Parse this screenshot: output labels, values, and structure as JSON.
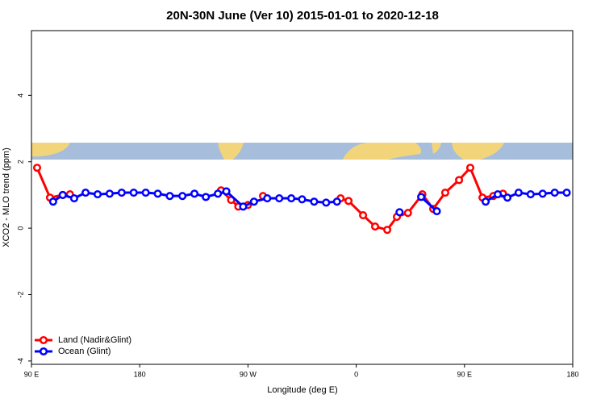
{
  "chart_data": {
    "type": "line",
    "title": "20N-30N June (Ver 10)   2015-01-01 to 2020-12-18",
    "x_label": "Longitude (deg E)",
    "y_label": "XCO2 - MLO trend (ppm)",
    "xlim": [
      90,
      540
    ],
    "ylim": [
      -4.1,
      5.95
    ],
    "xticks": [
      {
        "value": 90,
        "label": "90 E"
      },
      180,
      {
        "value": 270,
        "label": "90 W"
      },
      {
        "value": 360,
        "label": "0"
      },
      {
        "value": 450,
        "label": "90 E"
      },
      {
        "value": 540,
        "label": "180"
      }
    ],
    "yticks": [
      -4,
      -2,
      0,
      2,
      4
    ],
    "legend": "bottom-left",
    "series": [
      {
        "name": "Land (Nadir&Glint)",
        "color": "#ff0000",
        "x": [
          94.7,
          105.4,
          116,
          122,
          null,
          247.6,
          256,
          262,
          270,
          null,
          282.5,
          null,
          347,
          353.6,
          365.7,
          375.7,
          385.8,
          393.8,
          403,
          415,
          424,
          434,
          445.5,
          454.8,
          465,
          474,
          482
        ],
        "values": [
          1.82,
          0.92,
          1.0,
          1.02,
          null,
          1.14,
          0.85,
          0.65,
          0.7,
          null,
          0.97,
          null,
          0.9,
          0.82,
          0.39,
          0.05,
          -0.05,
          0.34,
          0.46,
          1.02,
          0.58,
          1.07,
          1.45,
          1.82,
          0.92,
          0.97,
          1.04
        ]
      },
      {
        "name": "Ocean (Glint)",
        "color": "#0000ff",
        "x": [
          108,
          116,
          125.5,
          135,
          145,
          155,
          165,
          175,
          185,
          195,
          205,
          215.5,
          225.5,
          235,
          245,
          252,
          266,
          275,
          286,
          296,
          306,
          315,
          325,
          335,
          344,
          null,
          396,
          null,
          414,
          427,
          null,
          467.6,
          477.7,
          485.7,
          495,
          505,
          515,
          525,
          535
        ],
        "values": [
          0.8,
          1.0,
          0.9,
          1.07,
          1.02,
          1.04,
          1.07,
          1.07,
          1.07,
          1.04,
          0.97,
          0.97,
          1.04,
          0.94,
          1.04,
          1.11,
          0.65,
          0.8,
          0.9,
          0.9,
          0.9,
          0.87,
          0.8,
          0.77,
          0.8,
          null,
          0.48,
          null,
          0.94,
          0.51,
          null,
          0.8,
          1.02,
          0.92,
          1.07,
          1.02,
          1.04,
          1.07,
          1.07
        ]
      }
    ]
  }
}
